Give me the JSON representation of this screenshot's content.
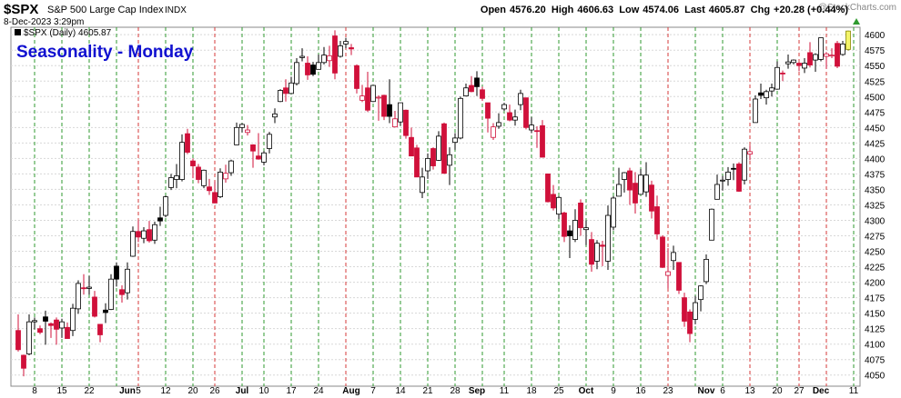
{
  "header": {
    "symbol": "$SPX",
    "name": "S&P 500 Large Cap Index",
    "exchange": "INDX",
    "datetime": "8-Dec-2023 3:29pm",
    "quote": [
      {
        "label": "Open",
        "value": "4576.20"
      },
      {
        "label": "High",
        "value": "4606.63"
      },
      {
        "label": "Low",
        "value": "4574.06"
      },
      {
        "label": "Last",
        "value": "4605.87"
      },
      {
        "label": "Chg",
        "value": "+20.28 (+0.44%)"
      }
    ],
    "watermark": "@StockCharts.com"
  },
  "chart_data": {
    "type": "candlestick",
    "annotation": "Seasonality - Monday",
    "legend": "$SPX (Daily) 4605.87",
    "ylim": [
      4032,
      4612
    ],
    "yticks": [
      4050,
      4075,
      4100,
      4125,
      4150,
      4175,
      4200,
      4225,
      4250,
      4275,
      4300,
      4325,
      4350,
      4375,
      4400,
      4425,
      4450,
      4475,
      4500,
      4525,
      4550,
      4575,
      4600
    ],
    "grid": true,
    "up_color": "#000000",
    "down_color": "#d0103a",
    "last_color": "#f4f46a",
    "categories": [
      null,
      null,
      null,
      "8",
      null,
      null,
      null,
      null,
      "15",
      null,
      null,
      null,
      null,
      "22",
      null,
      null,
      null,
      null,
      null,
      null,
      "Jun",
      null,
      "5",
      null,
      null,
      null,
      null,
      "12",
      null,
      null,
      null,
      null,
      "20",
      null,
      null,
      null,
      "26",
      null,
      null,
      null,
      null,
      "Jul",
      null,
      null,
      null,
      "10",
      null,
      null,
      null,
      null,
      "17",
      null,
      null,
      null,
      null,
      "24",
      null,
      null,
      null,
      null,
      null,
      "Aug",
      null,
      null,
      null,
      "7",
      null,
      null,
      null,
      null,
      "14",
      null,
      null,
      null,
      null,
      "21",
      null,
      null,
      null,
      null,
      "28",
      null,
      null,
      null,
      "Sep",
      null,
      null,
      null,
      null,
      "11",
      null,
      null,
      null,
      null,
      "18",
      null,
      null,
      null,
      null,
      "25",
      null,
      null,
      null,
      null,
      "Oct",
      null,
      null,
      null,
      null,
      "9",
      null,
      null,
      null,
      null,
      "16",
      null,
      null,
      null,
      null,
      "23",
      null,
      null,
      null,
      null,
      null,
      null,
      "Nov",
      null,
      null,
      "6",
      null,
      null,
      null,
      null,
      "13",
      null,
      null,
      null,
      null,
      "20",
      null,
      null,
      null,
      "27",
      null,
      null,
      null,
      "Dec",
      null,
      null,
      null,
      null,
      null,
      "11"
    ],
    "vline_colors": [
      null,
      null,
      null,
      "#2f9a2f",
      null,
      null,
      null,
      null,
      "#2f9a2f",
      null,
      null,
      null,
      null,
      "#2f9a2f",
      null,
      null,
      null,
      null,
      "#2f9a2f",
      null,
      null,
      null,
      "#d43a3a",
      null,
      null,
      null,
      null,
      "#2f9a2f",
      null,
      null,
      null,
      null,
      "#2f9a2f",
      null,
      null,
      null,
      "#d43a3a",
      null,
      null,
      null,
      null,
      "#2f9a2f",
      null,
      null,
      null,
      "#2f9a2f",
      null,
      null,
      null,
      null,
      "#2f9a2f",
      null,
      null,
      null,
      null,
      "#2f9a2f",
      null,
      null,
      null,
      null,
      "#d43a3a",
      null,
      null,
      null,
      null,
      "#2f9a2f",
      null,
      null,
      null,
      null,
      "#2f9a2f",
      null,
      null,
      null,
      null,
      "#2f9a2f",
      null,
      null,
      null,
      null,
      "#2f9a2f",
      null,
      null,
      null,
      null,
      "#2f9a2f",
      null,
      null,
      null,
      "#2f9a2f",
      null,
      null,
      null,
      null,
      "#2f9a2f",
      null,
      null,
      null,
      null,
      "#2f9a2f",
      null,
      null,
      null,
      null,
      "#2f9a2f",
      null,
      null,
      null,
      null,
      "#2f9a2f",
      null,
      null,
      null,
      null,
      "#2f9a2f",
      null,
      null,
      null,
      null,
      "#d43a3a",
      null,
      null,
      null,
      null,
      "#2f9a2f",
      null,
      null,
      null,
      null,
      "#2f9a2f",
      null,
      null,
      null,
      null,
      "#d43a3a",
      null,
      null,
      null,
      null,
      "#2f9a2f",
      null,
      null,
      null,
      "#d43a3a",
      null,
      null,
      null,
      null,
      "#d43a3a",
      null,
      null,
      null,
      null,
      "#2f9a2f"
    ],
    "ohlc": [
      [
        4122,
        4148,
        4088,
        4091
      ],
      [
        4082,
        4083,
        4048,
        4061
      ],
      [
        4084,
        4148,
        4082,
        4136
      ],
      [
        4136,
        4143,
        4124,
        4138
      ],
      [
        4125,
        4130,
        4116,
        4119
      ],
      [
        4144,
        4154,
        4099,
        4137
      ],
      [
        4133,
        4135,
        4110,
        4130
      ],
      [
        4139,
        4143,
        4099,
        4124
      ],
      [
        4126,
        4141,
        4110,
        4136
      ],
      [
        4127,
        4135,
        4109,
        4109
      ],
      [
        4122,
        4165,
        4113,
        4158
      ],
      [
        4157,
        4203,
        4149,
        4198
      ],
      [
        4191,
        4213,
        4180,
        4191
      ],
      [
        4190,
        4210,
        4180,
        4192
      ],
      [
        4176,
        4186,
        4143,
        4145
      ],
      [
        4132,
        4132,
        4103,
        4115
      ],
      [
        4155,
        4166,
        4134,
        4151
      ],
      [
        4156,
        4213,
        4155,
        4205
      ],
      [
        4226,
        4232,
        4193,
        4205
      ],
      [
        4188,
        4195,
        4167,
        4180
      ],
      [
        4183,
        4232,
        4172,
        4221
      ],
      [
        4242,
        4290,
        4241,
        4282
      ],
      [
        4282,
        4300,
        4265,
        4273
      ],
      [
        4271,
        4289,
        4263,
        4283
      ],
      [
        4285,
        4299,
        4264,
        4267
      ],
      [
        4268,
        4298,
        4262,
        4293
      ],
      [
        4304,
        4322,
        4291,
        4299
      ],
      [
        4308,
        4340,
        4305,
        4338
      ],
      [
        4353,
        4375,
        4349,
        4369
      ],
      [
        4366,
        4391,
        4352,
        4372
      ],
      [
        4366,
        4439,
        4363,
        4426
      ],
      [
        4440,
        4448,
        4407,
        4410
      ],
      [
        4396,
        4400,
        4368,
        4388
      ],
      [
        4386,
        4391,
        4360,
        4366
      ],
      [
        4356,
        4382,
        4352,
        4381
      ],
      [
        4354,
        4367,
        4341,
        4348
      ],
      [
        4345,
        4363,
        4328,
        4328
      ],
      [
        4338,
        4384,
        4336,
        4378
      ],
      [
        4367,
        4390,
        4361,
        4376
      ],
      [
        4377,
        4398,
        4372,
        4396
      ],
      [
        4422,
        4458,
        4422,
        4450
      ],
      [
        4450,
        4457,
        4442,
        4455
      ],
      [
        4442,
        4454,
        4437,
        4446
      ],
      [
        4422,
        4423,
        4385,
        4412
      ],
      [
        4404,
        4441,
        4398,
        4399
      ],
      [
        4394,
        4412,
        4389,
        4409
      ],
      [
        4416,
        4443,
        4408,
        4439
      ],
      [
        4467,
        4481,
        4457,
        4472
      ],
      [
        4492,
        4512,
        4491,
        4510
      ],
      [
        4514,
        4528,
        4492,
        4505
      ],
      [
        4505,
        4532,
        4504,
        4522
      ],
      [
        4521,
        4562,
        4518,
        4555
      ],
      [
        4563,
        4578,
        4557,
        4565
      ],
      [
        4554,
        4565,
        4527,
        4535
      ],
      [
        4551,
        4556,
        4533,
        4536
      ],
      [
        4544,
        4568,
        4544,
        4555
      ],
      [
        4555,
        4580,
        4552,
        4567
      ],
      [
        4558,
        4582,
        4548,
        4566
      ],
      [
        4598,
        4607,
        4528,
        4538
      ],
      [
        4565,
        4590,
        4563,
        4582
      ],
      [
        4585,
        4595,
        4578,
        4589
      ],
      [
        4579,
        4585,
        4567,
        4577
      ],
      [
        4550,
        4552,
        4505,
        4513
      ],
      [
        4494,
        4519,
        4491,
        4501
      ],
      [
        4514,
        4540,
        4475,
        4478
      ],
      [
        4492,
        4519,
        4491,
        4518
      ],
      [
        4498,
        4502,
        4461,
        4499
      ],
      [
        4502,
        4503,
        4462,
        4468
      ],
      [
        4487,
        4528,
        4457,
        4468
      ],
      [
        4451,
        4477,
        4450,
        4464
      ],
      [
        4459,
        4490,
        4453,
        4490
      ],
      [
        4478,
        4479,
        4432,
        4437
      ],
      [
        4434,
        4450,
        4404,
        4404
      ],
      [
        4417,
        4422,
        4370,
        4370
      ],
      [
        4345,
        4385,
        4336,
        4370
      ],
      [
        4380,
        4408,
        4367,
        4400
      ],
      [
        4416,
        4418,
        4382,
        4388
      ],
      [
        4397,
        4444,
        4396,
        4436
      ],
      [
        4456,
        4458,
        4375,
        4376
      ],
      [
        4389,
        4418,
        4357,
        4406
      ],
      [
        4426,
        4441,
        4414,
        4433
      ],
      [
        4433,
        4500,
        4431,
        4497
      ],
      [
        4501,
        4521,
        4500,
        4514
      ],
      [
        4518,
        4533,
        4507,
        4508
      ],
      [
        4530,
        4541,
        4501,
        4516
      ],
      [
        4511,
        4516,
        4493,
        4497
      ],
      [
        4490,
        4490,
        4442,
        4465
      ],
      [
        4434,
        4457,
        4430,
        4451
      ],
      [
        4452,
        4473,
        4448,
        4458
      ],
      [
        4480,
        4490,
        4477,
        4487
      ],
      [
        4474,
        4487,
        4460,
        4462
      ],
      [
        4462,
        4479,
        4453,
        4467
      ],
      [
        4487,
        4511,
        4478,
        4505
      ],
      [
        4498,
        4498,
        4447,
        4450
      ],
      [
        4446,
        4467,
        4441,
        4454
      ],
      [
        4445,
        4452,
        4417,
        4444
      ],
      [
        4453,
        4462,
        4402,
        4402
      ],
      [
        4375,
        4375,
        4329,
        4330
      ],
      [
        4342,
        4357,
        4316,
        4320
      ],
      [
        4310,
        4339,
        4302,
        4337
      ],
      [
        4312,
        4314,
        4265,
        4274
      ],
      [
        4283,
        4292,
        4239,
        4275
      ],
      [
        4269,
        4318,
        4265,
        4300
      ],
      [
        4328,
        4334,
        4275,
        4288
      ],
      [
        4285,
        4300,
        4260,
        4288
      ],
      [
        4269,
        4281,
        4217,
        4229
      ],
      [
        4234,
        4268,
        4221,
        4263
      ],
      [
        4260,
        4267,
        4226,
        4258
      ],
      [
        4234,
        4324,
        4220,
        4308
      ],
      [
        4289,
        4339,
        4284,
        4336
      ],
      [
        4339,
        4385,
        4339,
        4358
      ],
      [
        4366,
        4378,
        4345,
        4377
      ],
      [
        4380,
        4385,
        4325,
        4349
      ],
      [
        4360,
        4378,
        4311,
        4328
      ],
      [
        4342,
        4383,
        4342,
        4373
      ],
      [
        4346,
        4394,
        4338,
        4373
      ],
      [
        4357,
        4364,
        4303,
        4315
      ],
      [
        4322,
        4340,
        4269,
        4278
      ],
      [
        4273,
        4276,
        4223,
        4224
      ],
      [
        4211,
        4255,
        4190,
        4217
      ],
      [
        4235,
        4259,
        4220,
        4248
      ],
      [
        4232,
        4232,
        4181,
        4187
      ],
      [
        4175,
        4183,
        4128,
        4137
      ],
      [
        4152,
        4156,
        4103,
        4117
      ],
      [
        4140,
        4178,
        4132,
        4167
      ],
      [
        4172,
        4195,
        4153,
        4194
      ],
      [
        4201,
        4245,
        4197,
        4237
      ],
      [
        4268,
        4319,
        4268,
        4318
      ],
      [
        4334,
        4374,
        4334,
        4358
      ],
      [
        4364,
        4372,
        4348,
        4365
      ],
      [
        4366,
        4386,
        4356,
        4378
      ],
      [
        4384,
        4392,
        4365,
        4383
      ],
      [
        4391,
        4394,
        4346,
        4347
      ],
      [
        4365,
        4418,
        4358,
        4415
      ],
      [
        4407,
        4421,
        4397,
        4411
      ],
      [
        4458,
        4502,
        4458,
        4496
      ],
      [
        4506,
        4521,
        4496,
        4502
      ],
      [
        4498,
        4511,
        4487,
        4508
      ],
      [
        4509,
        4521,
        4500,
        4514
      ],
      [
        4512,
        4557,
        4511,
        4547
      ],
      [
        4538,
        4542,
        4525,
        4538
      ],
      [
        4553,
        4568,
        4545,
        4556
      ],
      [
        4555,
        4560,
        4552,
        4559
      ],
      [
        4554,
        4555,
        4541,
        4550
      ],
      [
        4546,
        4562,
        4538,
        4554
      ],
      [
        4571,
        4588,
        4547,
        4551
      ],
      [
        4559,
        4570,
        4540,
        4568
      ],
      [
        4560,
        4595,
        4557,
        4595
      ],
      [
        4565,
        4572,
        4545,
        4569
      ],
      [
        4566,
        4578,
        4562,
        4567
      ],
      [
        4586,
        4590,
        4546,
        4549
      ],
      [
        4568,
        4590,
        4566,
        4585
      ],
      [
        4576.2,
        4606.63,
        4574.06,
        4605.87
      ],
      null
    ]
  }
}
